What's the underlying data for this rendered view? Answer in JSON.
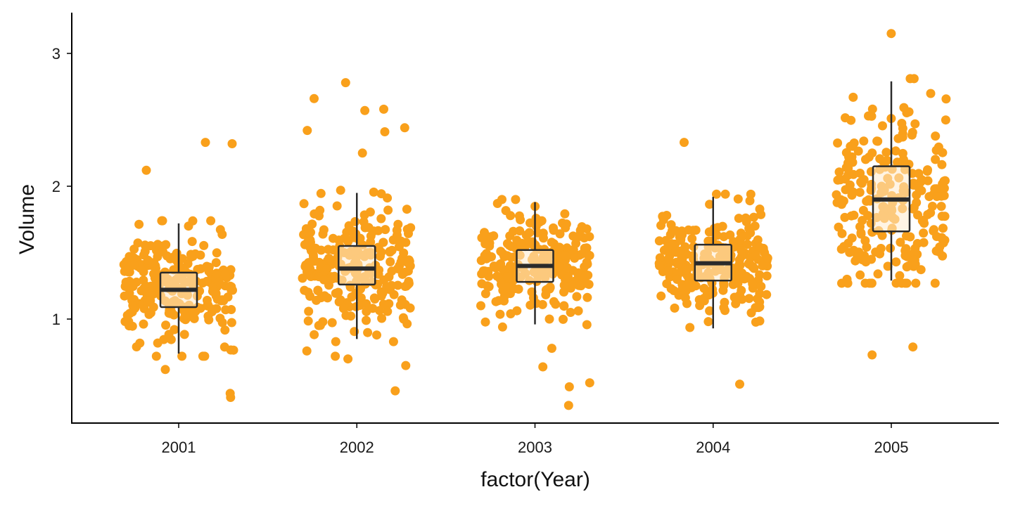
{
  "colors": {
    "point": "#F9A01B",
    "box_stroke": "#2B2B2B",
    "box_fill": "#FFE9C8",
    "axis": "#000000",
    "background": "#FFFFFF"
  },
  "chart_data": {
    "type": "boxplot_jitter",
    "title": "",
    "xlabel": "factor(Year)",
    "ylabel": "Volume",
    "categories": [
      "2001",
      "2002",
      "2003",
      "2004",
      "2005"
    ],
    "y_ticks": [
      1,
      2,
      3
    ],
    "y_tick_labels": [
      "1",
      "2",
      "3"
    ],
    "ylim": [
      0.22,
      3.3
    ],
    "grid": false,
    "legend": "none",
    "boxes": [
      {
        "category": "2001",
        "whisker_low": 0.74,
        "q1": 1.09,
        "median": 1.22,
        "q3": 1.35,
        "whisker_high": 1.72
      },
      {
        "category": "2002",
        "whisker_low": 0.85,
        "q1": 1.26,
        "median": 1.38,
        "q3": 1.55,
        "whisker_high": 1.95
      },
      {
        "category": "2003",
        "whisker_low": 0.96,
        "q1": 1.28,
        "median": 1.4,
        "q3": 1.52,
        "whisker_high": 1.88
      },
      {
        "category": "2004",
        "whisker_low": 0.93,
        "q1": 1.29,
        "median": 1.42,
        "q3": 1.56,
        "whisker_high": 1.92
      },
      {
        "category": "2005",
        "whisker_low": 1.29,
        "q1": 1.66,
        "median": 1.9,
        "q3": 2.15,
        "whisker_high": 2.79
      }
    ],
    "outliers": [
      {
        "category": "2001",
        "values": [
          2.33,
          2.32,
          2.12,
          0.62,
          0.41,
          0.44
        ]
      },
      {
        "category": "2002",
        "values": [
          2.78,
          2.66,
          2.58,
          2.57,
          2.44,
          2.42,
          2.41,
          2.25,
          0.76,
          0.72,
          0.7,
          0.65,
          0.46
        ]
      },
      {
        "category": "2003",
        "values": [
          0.78,
          0.64,
          0.52,
          0.49,
          0.35
        ]
      },
      {
        "category": "2004",
        "values": [
          2.33,
          0.51
        ]
      },
      {
        "category": "2005",
        "values": [
          3.15,
          0.79,
          0.73
        ]
      }
    ],
    "points_per_category": 250
  }
}
